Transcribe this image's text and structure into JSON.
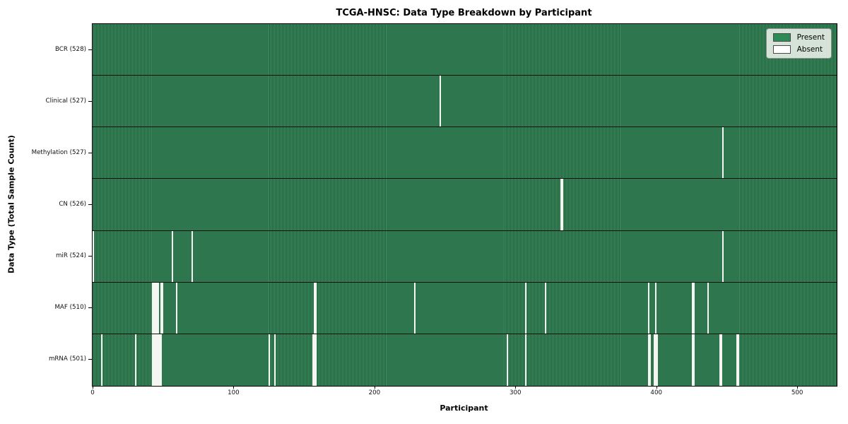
{
  "title": "TCGA-HNSC: Data Type Breakdown by Participant",
  "xlabel": "Participant",
  "ylabel": "Data Type (Total Sample Count)",
  "legend": {
    "present_label": "Present",
    "absent_label": "Absent"
  },
  "colors": {
    "present": "#2e8b57",
    "present_stripe_light": "#3c8d60",
    "present_stripe_dark": "#215e3b",
    "absent": "#f5f5f2",
    "row_divider": "#0d120e"
  },
  "chart_data": {
    "type": "heatmap",
    "n_participants": 528,
    "x_ticks": [
      0,
      100,
      200,
      300,
      400,
      500
    ],
    "legend_entries": [
      "Present",
      "Absent"
    ],
    "legend_position": "upper right",
    "rows": [
      {
        "key": "bcr",
        "label": "BCR (528)",
        "total": 528,
        "absent_indices": []
      },
      {
        "key": "clinical",
        "label": "Clinical (527)",
        "total": 527,
        "absent_indices": [
          246
        ]
      },
      {
        "key": "methylation",
        "label": "Methylation (527)",
        "total": 527,
        "absent_indices": [
          447
        ]
      },
      {
        "key": "cn",
        "label": "CN (526)",
        "total": 526,
        "absent_indices": [
          332,
          333
        ]
      },
      {
        "key": "mir",
        "label": "miR (524)",
        "total": 524,
        "absent_indices": [
          0,
          56,
          70,
          447
        ]
      },
      {
        "key": "maf",
        "label": "MAF (510)",
        "total": 510,
        "absent_indices": [
          42,
          43,
          44,
          45,
          46,
          48,
          49,
          59,
          157,
          158,
          228,
          307,
          321,
          394,
          399,
          425,
          426,
          436
        ]
      },
      {
        "key": "mrna",
        "label": "mRNA (501)",
        "total": 501,
        "absent_indices": [
          6,
          30,
          42,
          43,
          44,
          45,
          46,
          47,
          48,
          125,
          129,
          156,
          157,
          158,
          294,
          307,
          394,
          395,
          398,
          399,
          400,
          425,
          426,
          445,
          446,
          457,
          458
        ]
      }
    ]
  }
}
